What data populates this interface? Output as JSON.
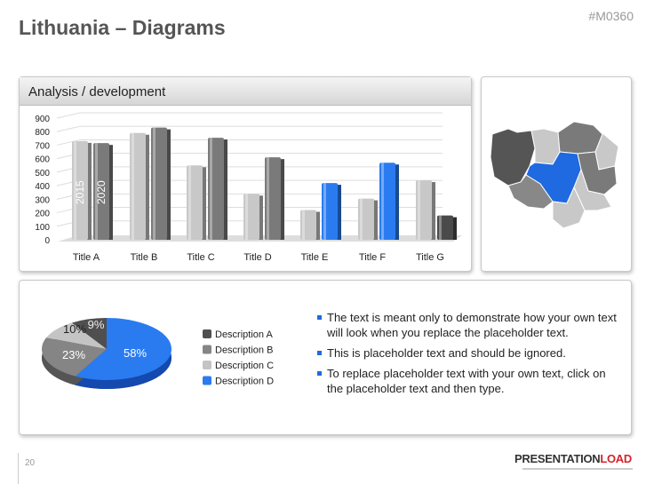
{
  "header": {
    "title": "Lithuania – Diagrams",
    "code": "#M0360"
  },
  "chart_panel": {
    "title": "Analysis / development"
  },
  "chart_data": [
    {
      "type": "bar",
      "categories": [
        "Title A",
        "Title B",
        "Title C",
        "Title D",
        "Title E",
        "Title F",
        "Title G"
      ],
      "series": [
        {
          "name": "2015",
          "values": [
            730,
            790,
            550,
            340,
            220,
            305,
            440
          ]
        },
        {
          "name": "2020",
          "values": [
            715,
            830,
            755,
            610,
            420,
            570,
            180
          ]
        }
      ],
      "bar_colors": {
        "2015": [
          "#c8c8c8",
          "#c8c8c8",
          "#c8c8c8",
          "#c8c8c8",
          "#c8c8c8",
          "#c8c8c8",
          "#c8c8c8"
        ],
        "2020": [
          "#7a7a7a",
          "#7a7a7a",
          "#7a7a7a",
          "#7a7a7a",
          "#2a7bf0",
          "#2a7bf0",
          "#4a4a4a"
        ]
      },
      "ylim": [
        0,
        900
      ],
      "yticks": [
        0,
        100,
        200,
        300,
        400,
        500,
        600,
        700,
        800,
        900
      ],
      "grid": true
    },
    {
      "type": "pie",
      "labels": [
        "Description A",
        "Description B",
        "Description C",
        "Description D"
      ],
      "values": [
        9,
        23,
        10,
        58
      ],
      "value_labels": [
        "9%",
        "23%",
        "10%",
        "58%"
      ],
      "colors": [
        "#4f4f4f",
        "#858585",
        "#c4c4c4",
        "#2a7bf0"
      ],
      "legend": "right"
    }
  ],
  "bullets": [
    "The text is meant only to demonstrate how your own text will look when you replace the placeholder text.",
    "This is placeholder text and should be ignored.",
    "To replace placeholder text with your own text, click on the placeholder text and then type."
  ],
  "footer": {
    "page": "20",
    "logo_a": "PRESENTATION",
    "logo_b": "LOAD"
  },
  "map": {
    "highlight": "#1f6ae0"
  }
}
